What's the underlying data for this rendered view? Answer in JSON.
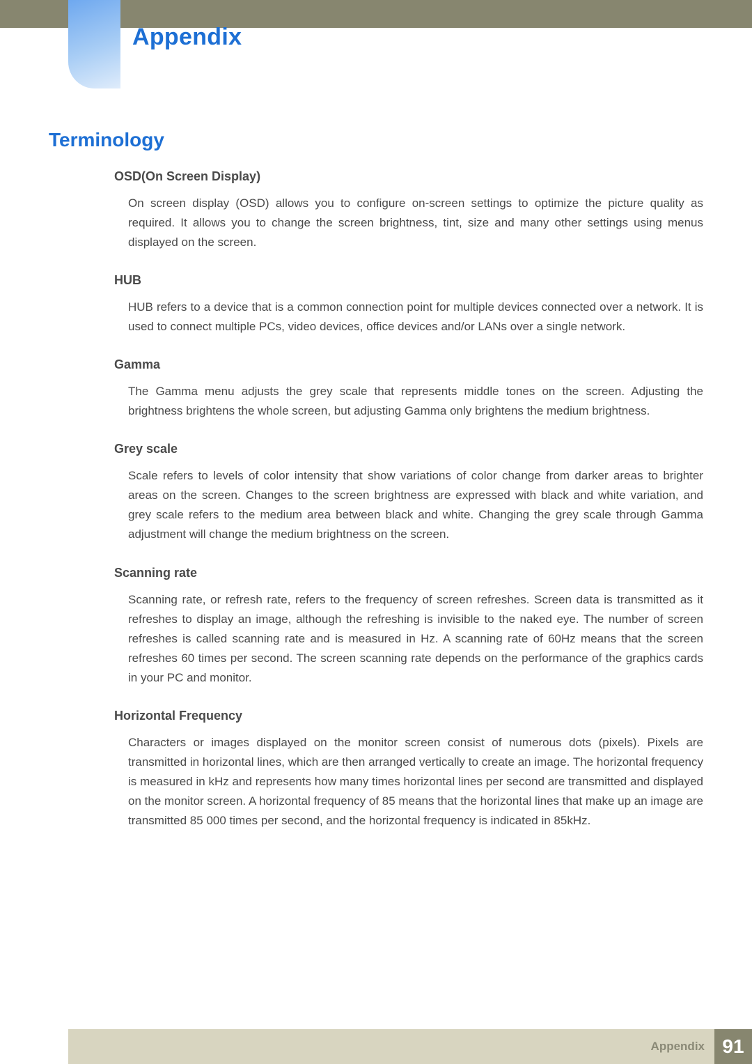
{
  "header": {
    "chapter_title": "Appendix",
    "bar_color": "#87866f",
    "tab_gradient_from": "#6ea8ef",
    "tab_gradient_to": "#dfecfb"
  },
  "section_title": "Terminology",
  "title_color": "#1d6fd4",
  "text_color": "#4a4a4a",
  "terms": [
    {
      "title": "OSD(On Screen Display)",
      "body": "On screen display (OSD) allows you to configure on-screen settings to optimize the picture quality as required. It allows you to change the screen brightness, tint, size and many other settings using menus displayed on the screen."
    },
    {
      "title": "HUB",
      "body": "HUB refers to a device that is a common connection point for multiple devices connected over a network. It is used to connect multiple PCs, video devices, office devices and/or LANs over a single network."
    },
    {
      "title": "Gamma",
      "body": "The Gamma menu adjusts the grey scale that represents middle tones on the screen. Adjusting the brightness brightens the whole screen, but adjusting Gamma only brightens the medium brightness."
    },
    {
      "title": "Grey scale",
      "body": "Scale refers to levels of color intensity that show variations of color change from darker areas to brighter areas on the screen. Changes to the screen brightness are expressed with black and white variation, and grey scale refers to the medium area between black and white. Changing the grey scale through Gamma adjustment will change the medium brightness on the screen."
    },
    {
      "title": "Scanning rate",
      "body": "Scanning rate, or refresh rate, refers to the frequency of screen refreshes. Screen data is transmitted as it refreshes to display an image, although the refreshing is invisible to the naked eye. The number of screen refreshes is called scanning rate and is measured in Hz. A scanning rate of 60Hz means that the screen refreshes 60 times per second. The screen scanning rate depends on the performance of the graphics cards in your PC and monitor."
    },
    {
      "title": "Horizontal Frequency",
      "body": "Characters or images displayed on the monitor screen consist of numerous dots (pixels). Pixels are transmitted in horizontal lines, which are then arranged vertically to create an image. The horizontal frequency is measured in kHz and represents how many times horizontal lines per second are transmitted and displayed on the monitor screen. A horizontal frequency of 85 means that the horizontal lines that make up an image are transmitted 85 000 times per second, and the horizontal frequency is indicated in 85kHz."
    }
  ],
  "footer": {
    "label": "Appendix",
    "page": "91",
    "bar_color": "#d8d5c0",
    "page_bg": "#87866f",
    "label_color": "#8b8a77"
  }
}
